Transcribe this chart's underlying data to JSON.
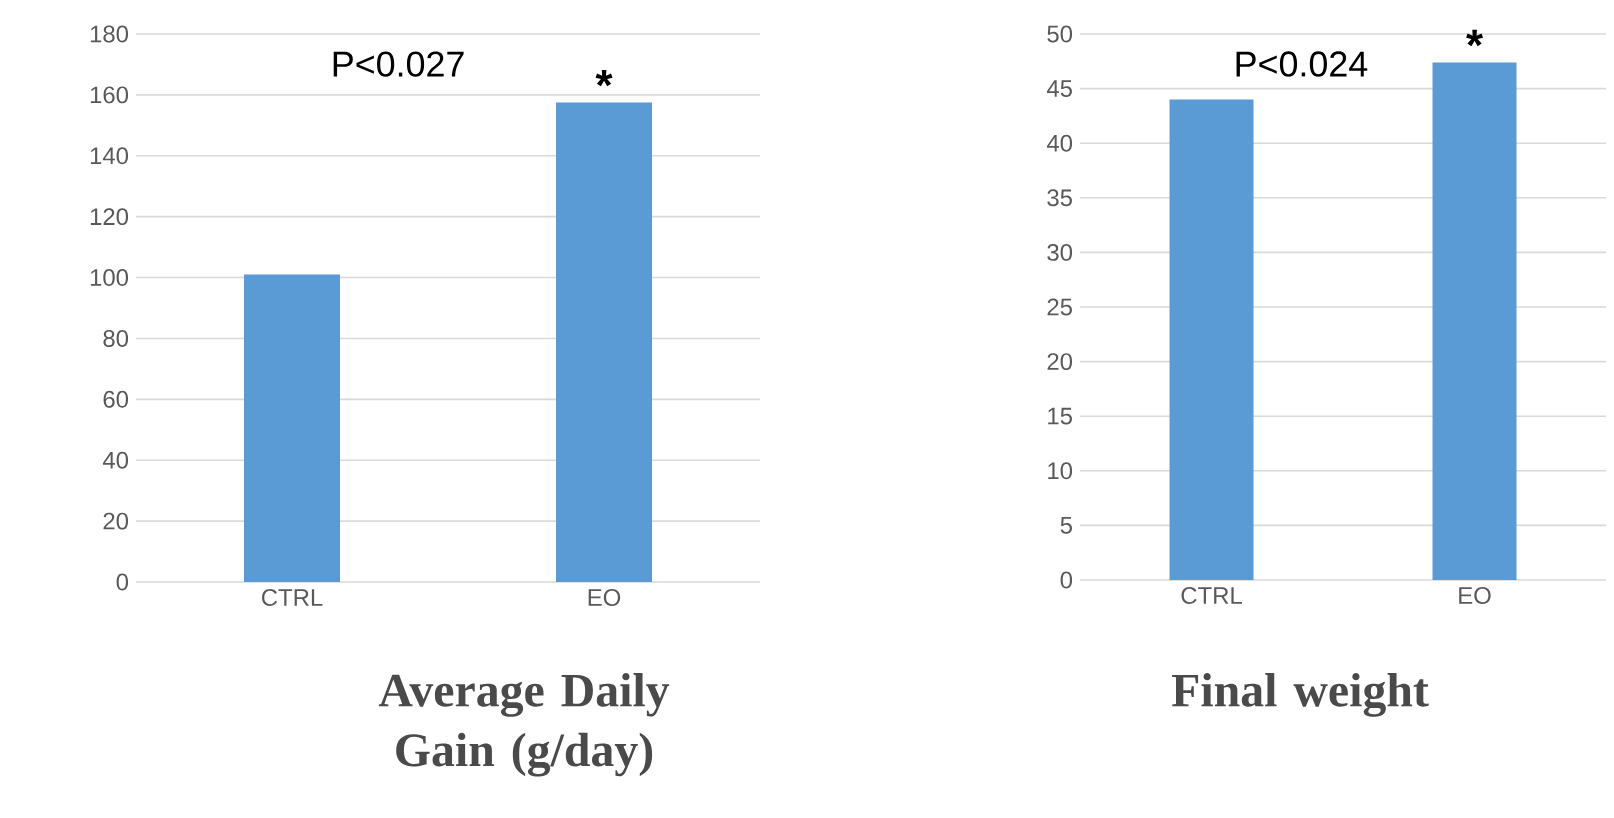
{
  "chart_data": [
    {
      "type": "bar",
      "title": "Average Daily Gain (g/day)",
      "categories": [
        "CTRL",
        "EO"
      ],
      "values": [
        101,
        157.5
      ],
      "color": "#5b9bd5",
      "ylim": [
        0,
        180
      ],
      "yticks": [
        0,
        20,
        40,
        60,
        80,
        100,
        120,
        140,
        160,
        180
      ],
      "grid": "y",
      "annotations": [
        "P<0.027",
        "*"
      ]
    },
    {
      "type": "bar",
      "title": "Final weight",
      "categories": [
        "CTRL",
        "EO"
      ],
      "values": [
        44,
        47.4
      ],
      "color": "#5b9bd5",
      "ylim": [
        0,
        50
      ],
      "yticks": [
        0,
        5,
        10,
        15,
        20,
        25,
        30,
        35,
        40,
        45,
        50
      ],
      "grid": "y",
      "annotations": [
        "P<0.024",
        "*"
      ]
    }
  ]
}
